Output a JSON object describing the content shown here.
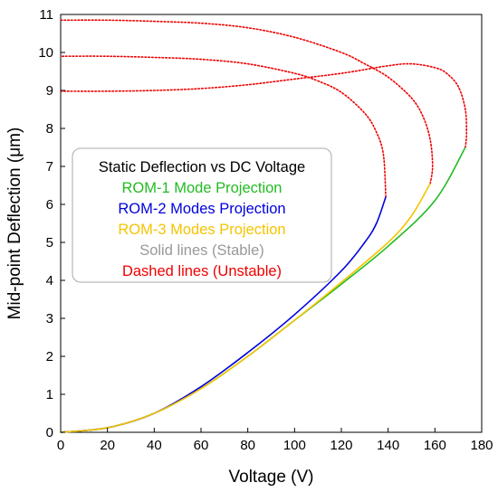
{
  "chart_data": {
    "type": "line",
    "title": "",
    "xlabel": "Voltage (V)",
    "ylabel": "Mid-point Deflection (μm)",
    "xlim": [
      0,
      180
    ],
    "ylim": [
      0,
      11
    ],
    "xticks": [
      "0",
      "20",
      "40",
      "60",
      "80",
      "100",
      "120",
      "140",
      "160",
      "180"
    ],
    "yticks": [
      "0",
      "1",
      "2",
      "3",
      "4",
      "5",
      "6",
      "7",
      "8",
      "9",
      "10",
      "11"
    ],
    "grid": false,
    "legend": {
      "placement": "center-left",
      "title": "Static Deflection vs DC Voltage",
      "entries": [
        {
          "text": "ROM-1 Mode Projection",
          "color": "#22bb22"
        },
        {
          "text": "ROM-2 Modes Projection",
          "color": "#0000dd"
        },
        {
          "text": "ROM-3 Modes Projection",
          "color": "#f5c400"
        },
        {
          "text": "Solid lines (Stable)",
          "color": "#999999"
        },
        {
          "text": "Dashed lines (Unstable)",
          "color": "#ee0000"
        }
      ]
    },
    "series": [
      {
        "name": "ROM-1 Mode Projection",
        "color": "#22bb22",
        "stable": {
          "x": [
            0,
            20,
            40,
            60,
            80,
            100,
            120,
            140,
            160,
            173
          ],
          "y": [
            0,
            0.12,
            0.5,
            1.15,
            2.0,
            2.95,
            3.9,
            4.9,
            6.1,
            7.5
          ]
        },
        "unstable": {
          "x": [
            173,
            173.5,
            173,
            170,
            165,
            160,
            150,
            140,
            120,
            100,
            80,
            60,
            40,
            20,
            0
          ],
          "y": [
            7.5,
            7.85,
            8.5,
            9.1,
            9.45,
            9.6,
            9.7,
            9.65,
            9.45,
            9.3,
            9.15,
            9.05,
            9.0,
            8.98,
            8.98
          ]
        }
      },
      {
        "name": "ROM-2 Modes Projection",
        "color": "#0000dd",
        "stable": {
          "x": [
            0,
            20,
            40,
            60,
            80,
            100,
            120,
            130,
            135,
            139
          ],
          "y": [
            0,
            0.12,
            0.5,
            1.2,
            2.1,
            3.1,
            4.25,
            5.0,
            5.5,
            6.2
          ]
        },
        "unstable": {
          "x": [
            139,
            138,
            135,
            130,
            120,
            110,
            100,
            80,
            60,
            40,
            20,
            0
          ],
          "y": [
            6.2,
            7.3,
            7.9,
            8.4,
            8.95,
            9.25,
            9.45,
            9.7,
            9.82,
            9.87,
            9.9,
            9.9
          ]
        }
      },
      {
        "name": "ROM-3 Modes Projection",
        "color": "#f5c400",
        "stable": {
          "x": [
            0,
            20,
            40,
            60,
            80,
            100,
            120,
            140,
            150,
            158
          ],
          "y": [
            0,
            0.12,
            0.5,
            1.15,
            2.0,
            2.95,
            3.95,
            5.0,
            5.7,
            6.55
          ]
        },
        "unstable": {
          "x": [
            158,
            159,
            158,
            155,
            150,
            140,
            130,
            120,
            100,
            80,
            60,
            40,
            20,
            0
          ],
          "y": [
            6.55,
            7.0,
            7.7,
            8.3,
            8.8,
            9.35,
            9.7,
            10.0,
            10.4,
            10.65,
            10.77,
            10.82,
            10.85,
            10.85
          ]
        }
      }
    ]
  }
}
